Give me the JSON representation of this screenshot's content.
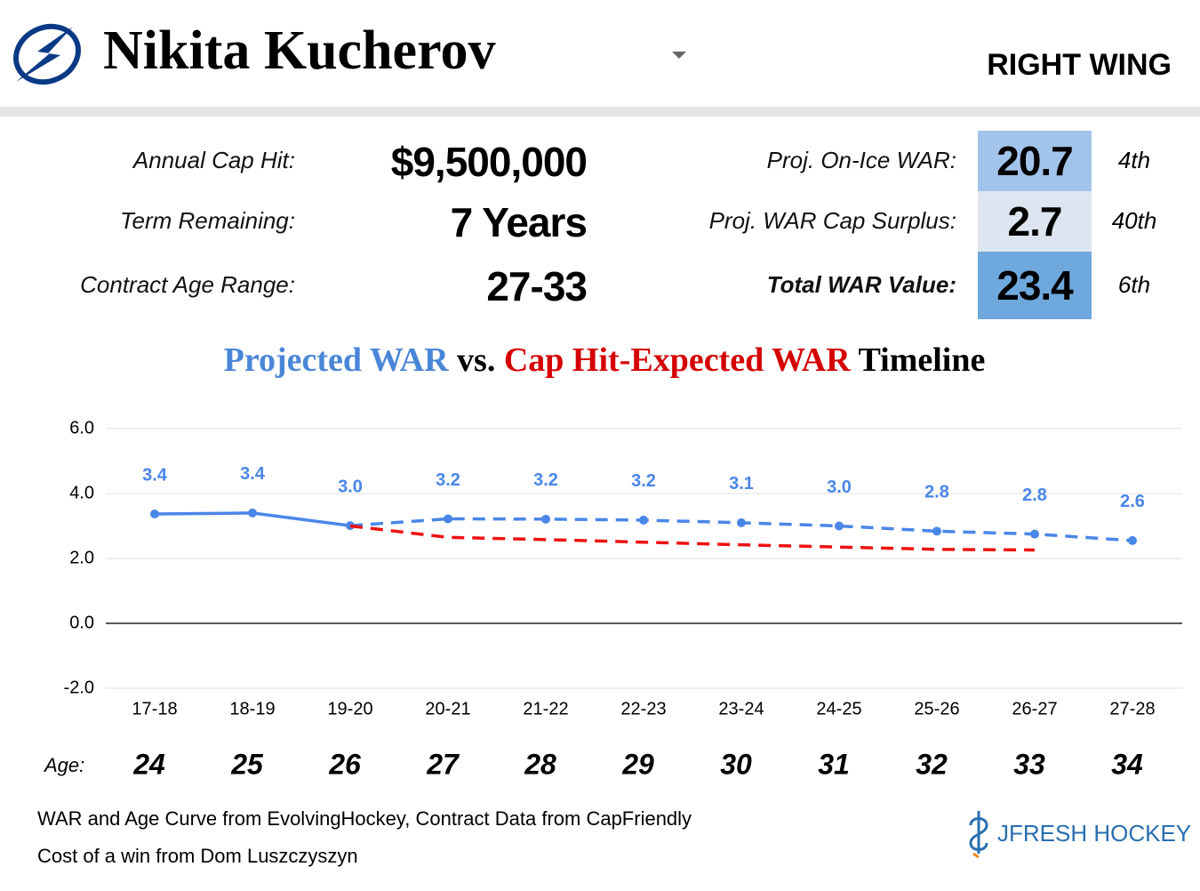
{
  "header": {
    "player": "Nikita Kucherov",
    "position": "RIGHT WING"
  },
  "contract": [
    {
      "label": "Annual Cap Hit:",
      "value": "$9,500,000"
    },
    {
      "label": "Term Remaining:",
      "value": "7 Years"
    },
    {
      "label": "Contract Age Range:",
      "value": "27-33"
    }
  ],
  "war": [
    {
      "label": "Proj. On-Ice WAR:",
      "value": "20.7",
      "rank": "4th",
      "color": "#a3c4ea"
    },
    {
      "label": "Proj. WAR Cap Surplus:",
      "value": "2.7",
      "rank": "40th",
      "color": "#dde6f0"
    },
    {
      "label": "Total WAR Value:",
      "value": "23.4",
      "rank": "6th",
      "color": "#6fa8dc"
    }
  ],
  "chart_data": {
    "type": "line",
    "title_parts": [
      {
        "text": "Projected WAR",
        "color": "#4a86d8"
      },
      {
        "text": "vs.",
        "color": "#000000"
      },
      {
        "text": "Cap Hit-Expected WAR",
        "color": "#d40000"
      },
      {
        "text": "Timeline",
        "color": "#000000"
      }
    ],
    "categories": [
      "17-18",
      "18-19",
      "19-20",
      "20-21",
      "21-22",
      "22-23",
      "23-24",
      "24-25",
      "25-26",
      "26-27",
      "27-28"
    ],
    "series": [
      {
        "color": "#4a86e8",
        "dashed_from": 2,
        "markers": true,
        "values": [
          3.37,
          3.4,
          3.01,
          3.22,
          3.21,
          3.18,
          3.1,
          3.0,
          2.84,
          2.75,
          2.55
        ],
        "value_labels": [
          "3.4",
          "3.4",
          "3.0",
          "3.2",
          "3.2",
          "3.2",
          "3.1",
          "3.0",
          "2.8",
          "2.8",
          "2.6"
        ]
      },
      {
        "color": "#ee1111",
        "dashed_from": 0,
        "markers": false,
        "values": [
          null,
          null,
          3.0,
          2.65,
          2.58,
          2.5,
          2.42,
          2.35,
          2.28,
          2.26,
          null
        ]
      }
    ],
    "ylim": [
      -2,
      6
    ],
    "yticks": [
      {
        "value": -2,
        "label": "-2.0"
      },
      {
        "value": 0,
        "label": "0.0"
      },
      {
        "value": 2,
        "label": "2.0"
      },
      {
        "value": 4,
        "label": "4.0"
      },
      {
        "value": 6,
        "label": "6.0"
      }
    ],
    "grid": true,
    "age_label": "Age:",
    "ages": [
      24,
      25,
      26,
      27,
      28,
      29,
      30,
      31,
      32,
      33,
      34
    ]
  },
  "footer": {
    "notes": [
      "WAR and Age Curve from EvolvingHockey, Contract Data from CapFriendly",
      "Cost of a win from Dom Luszczyszyn"
    ],
    "brand": "JFRESH HOCKEY"
  }
}
